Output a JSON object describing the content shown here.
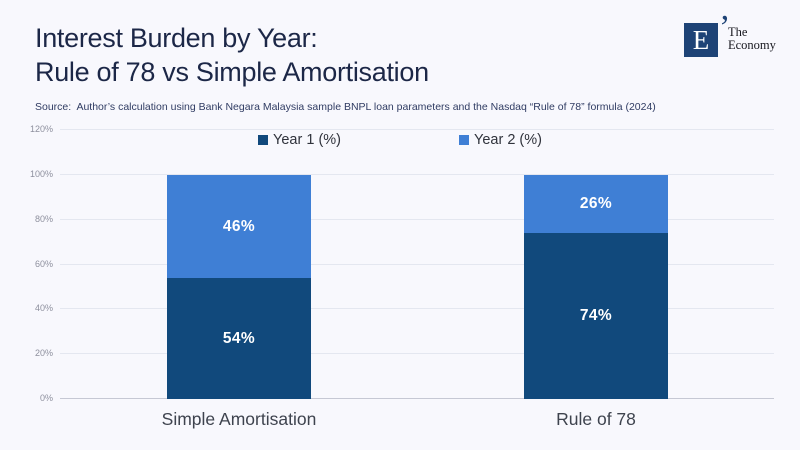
{
  "header": {
    "title_line1": "Interest Burden by Year:",
    "title_line2": "Rule of 78 vs Simple Amortisation",
    "source": "Source:  Author’s calculation using Bank Negara Malaysia sample BNPL loan parameters and the Nasdaq “Rule of 78” formula (2024)",
    "logo": {
      "letter": "E",
      "quote_mark": "’",
      "name_line1": "The",
      "name_line2": "Economy"
    }
  },
  "colors": {
    "background": "#f8f8fd",
    "title": "#1c2747",
    "year1": "#11497c",
    "year2": "#3f7fd5",
    "grid": "#e4e7f0",
    "axis_line": "#c6c8d4",
    "tick_label": "#8e909e",
    "category_label": "#3e434e",
    "logo_navy": "#1e4376"
  },
  "chart_data": {
    "type": "bar",
    "stacked": true,
    "title": "Interest Burden by Year: Rule of 78 vs Simple Amortisation",
    "categories": [
      "Simple Amortisation",
      "Rule of 78"
    ],
    "series": [
      {
        "name": "Year 1 (%)",
        "values": [
          54,
          74
        ],
        "color": "#11497c"
      },
      {
        "name": "Year 2 (%)",
        "values": [
          46,
          26
        ],
        "color": "#3f7fd5"
      }
    ],
    "bar_labels": [
      [
        "54%",
        "74%"
      ],
      [
        "46%",
        "26%"
      ]
    ],
    "xlabel": "",
    "ylabel": "",
    "ylim": [
      0,
      120
    ],
    "ytick_step": 20,
    "ytick_labels": [
      "0%",
      "20%",
      "40%",
      "60%",
      "80%",
      "100%",
      "120%"
    ],
    "grid": true,
    "legend_position": "top-center"
  }
}
